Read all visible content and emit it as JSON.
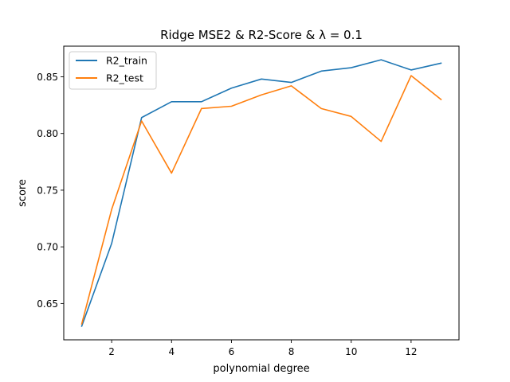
{
  "chart_data": {
    "type": "line",
    "title": "Ridge MSE2 & R2-Score &  λ = 0.1",
    "xlabel": "polynomial degree",
    "ylabel": "score",
    "x": [
      1,
      2,
      3,
      4,
      5,
      6,
      7,
      8,
      9,
      10,
      11,
      12,
      13
    ],
    "xlim": [
      0.4,
      13.6
    ],
    "ylim": [
      0.618,
      0.877
    ],
    "xticks": [
      2,
      4,
      6,
      8,
      10,
      12
    ],
    "yticks": [
      0.65,
      0.7,
      0.75,
      0.8,
      0.85
    ],
    "xtick_labels": [
      "2",
      "4",
      "6",
      "8",
      "10",
      "12"
    ],
    "ytick_labels": [
      "0.65",
      "0.70",
      "0.75",
      "0.80",
      "0.85"
    ],
    "grid": false,
    "legend_position": "top-left",
    "series": [
      {
        "name": "R2_train",
        "color": "#1f77b4",
        "values": [
          0.63,
          0.703,
          0.814,
          0.828,
          0.828,
          0.84,
          0.848,
          0.845,
          0.855,
          0.858,
          0.865,
          0.856,
          0.862
        ]
      },
      {
        "name": "R2_test",
        "color": "#ff7f0e",
        "values": [
          0.632,
          0.733,
          0.811,
          0.765,
          0.822,
          0.824,
          0.834,
          0.842,
          0.822,
          0.815,
          0.793,
          0.851,
          0.83
        ]
      }
    ]
  }
}
